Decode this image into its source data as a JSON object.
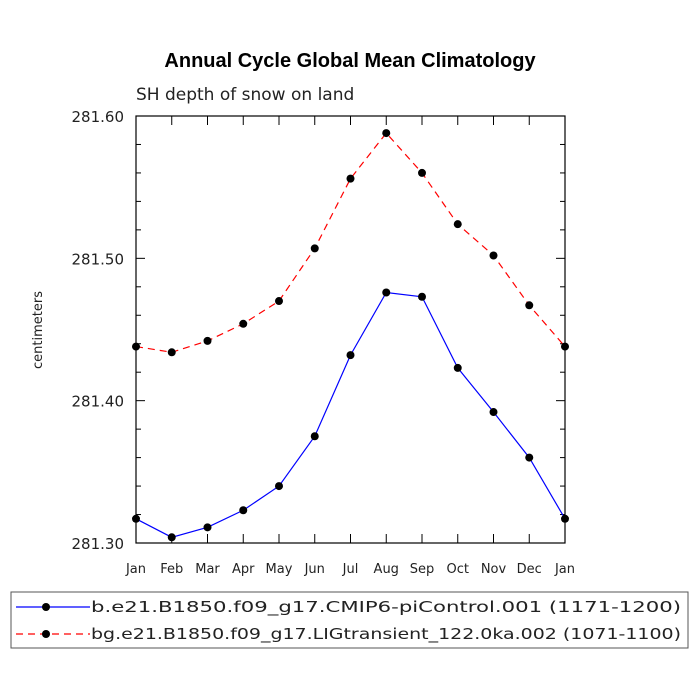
{
  "chart_data": {
    "type": "line",
    "title": "Annual Cycle Global Mean Climatology",
    "subtitle": "SH depth of snow on land",
    "ylabel": "centimeters",
    "xlabel": "",
    "categories": [
      "Jan",
      "Feb",
      "Mar",
      "Apr",
      "May",
      "Jun",
      "Jul",
      "Aug",
      "Sep",
      "Oct",
      "Nov",
      "Dec",
      "Jan"
    ],
    "ylim": [
      281.3,
      281.6
    ],
    "yticks": [
      "281.30",
      "281.40",
      "281.50",
      "281.60"
    ],
    "grid": false,
    "legend_position": "bottom",
    "series": [
      {
        "name": "b.e21.B1850.f09_g17.CMIP6-piControl.001 (1171-1200)",
        "color": "#0000ff",
        "dash": "solid",
        "marker": "filled-circle",
        "values": [
          281.317,
          281.304,
          281.311,
          281.323,
          281.34,
          281.375,
          281.432,
          281.476,
          281.473,
          281.423,
          281.392,
          281.36,
          281.317
        ]
      },
      {
        "name": "bg.e21.B1850.f09_g17.LIGtransient_122.0ka.002 (1071-1100)",
        "color": "#ff0000",
        "dash": "dashed",
        "marker": "filled-circle",
        "values": [
          281.438,
          281.434,
          281.442,
          281.454,
          281.47,
          281.507,
          281.556,
          281.588,
          281.56,
          281.524,
          281.502,
          281.467,
          281.438
        ]
      }
    ]
  }
}
